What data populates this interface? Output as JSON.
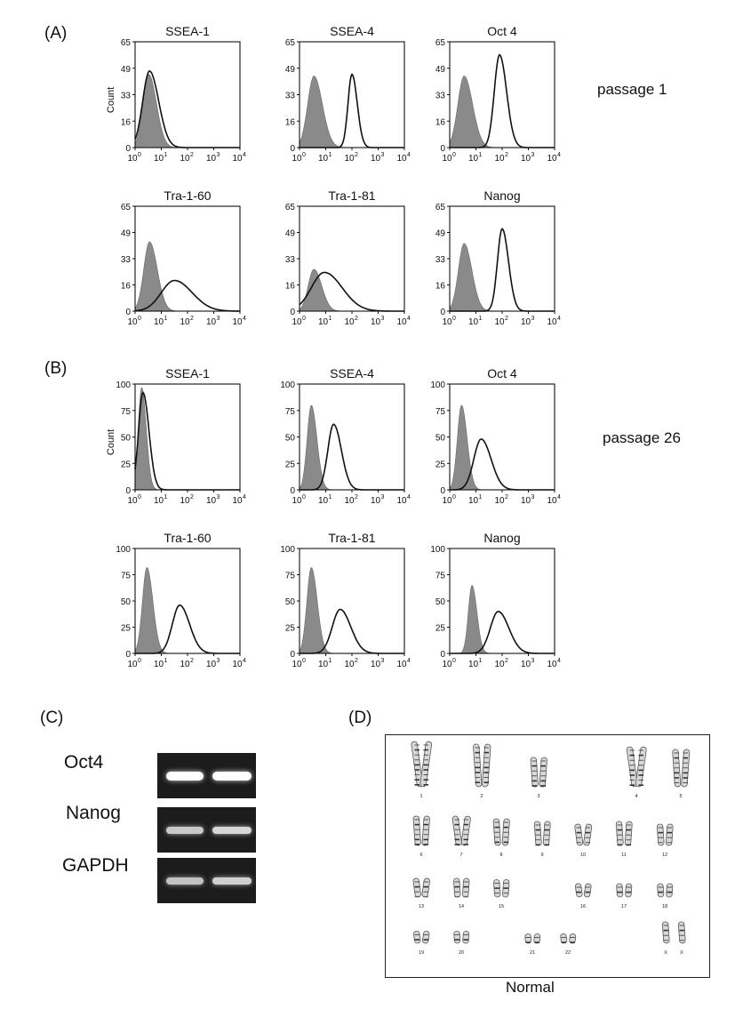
{
  "panels": {
    "A": "(A)",
    "B": "(B)",
    "C": "(C)",
    "D": "(D)"
  },
  "passages": {
    "A": "passage 1",
    "B": "passage 26"
  },
  "count_label": "Count",
  "chart_data": [
    {
      "type": "histogram",
      "panel": "A",
      "title": "SSEA-1",
      "ylabel": "Count",
      "yticks": [
        "0",
        "16",
        "33",
        "49",
        "65"
      ],
      "ylim": [
        0,
        65
      ],
      "xscale": "log",
      "xlim": [
        1,
        10000
      ],
      "isotype": {
        "peak_log": 0.52,
        "sigma": 0.22,
        "height": 45
      },
      "stain": {
        "peak_log": 0.55,
        "sigma": 0.26,
        "height": 47
      }
    },
    {
      "type": "histogram",
      "panel": "A",
      "title": "SSEA-4",
      "ylabel": "",
      "yticks": [
        "0",
        "16",
        "33",
        "49",
        "65"
      ],
      "ylim": [
        0,
        65
      ],
      "xscale": "log",
      "xlim": [
        1,
        10000
      ],
      "isotype": {
        "peak_log": 0.55,
        "sigma": 0.24,
        "height": 44
      },
      "stain": {
        "peak_log": 2.0,
        "sigma": 0.15,
        "height": 45
      }
    },
    {
      "type": "histogram",
      "panel": "A",
      "title": "Oct 4",
      "ylabel": "",
      "yticks": [
        "0",
        "16",
        "33",
        "49",
        "65"
      ],
      "ylim": [
        0,
        65
      ],
      "xscale": "log",
      "xlim": [
        1,
        10000
      ],
      "isotype": {
        "peak_log": 0.55,
        "sigma": 0.24,
        "height": 44
      },
      "stain": {
        "peak_log": 1.9,
        "sigma": 0.2,
        "height": 57
      }
    },
    {
      "type": "histogram",
      "panel": "A",
      "title": "Tra-1-60",
      "ylabel": "",
      "yticks": [
        "0",
        "16",
        "33",
        "49",
        "65"
      ],
      "ylim": [
        0,
        65
      ],
      "xscale": "log",
      "xlim": [
        1,
        10000
      ],
      "isotype": {
        "peak_log": 0.55,
        "sigma": 0.22,
        "height": 43
      },
      "stain": {
        "peak_log": 1.5,
        "sigma": 0.5,
        "height": 19
      }
    },
    {
      "type": "histogram",
      "panel": "A",
      "title": "Tra-1-81",
      "ylabel": "",
      "yticks": [
        "0",
        "16",
        "33",
        "49",
        "65"
      ],
      "ylim": [
        0,
        65
      ],
      "xscale": "log",
      "xlim": [
        1,
        10000
      ],
      "isotype": {
        "peak_log": 0.55,
        "sigma": 0.22,
        "height": 26
      },
      "stain": {
        "peak_log": 0.95,
        "sigma": 0.5,
        "height": 24
      }
    },
    {
      "type": "histogram",
      "panel": "A",
      "title": "Nanog",
      "ylabel": "",
      "yticks": [
        "0",
        "16",
        "33",
        "49",
        "65"
      ],
      "ylim": [
        0,
        65
      ],
      "xscale": "log",
      "xlim": [
        1,
        10000
      ],
      "isotype": {
        "peak_log": 0.55,
        "sigma": 0.22,
        "height": 42
      },
      "stain": {
        "peak_log": 2.0,
        "sigma": 0.18,
        "height": 51
      }
    },
    {
      "type": "histogram",
      "panel": "B",
      "title": "SSEA-1",
      "ylabel": "Count",
      "yticks": [
        "0",
        "25",
        "50",
        "75",
        "100"
      ],
      "ylim": [
        0,
        100
      ],
      "xscale": "log",
      "xlim": [
        1,
        10000
      ],
      "isotype": {
        "peak_log": 0.25,
        "sigma": 0.13,
        "height": 97
      },
      "stain": {
        "peak_log": 0.3,
        "sigma": 0.17,
        "height": 92
      }
    },
    {
      "type": "histogram",
      "panel": "B",
      "title": "SSEA-4",
      "ylabel": "",
      "yticks": [
        "0",
        "25",
        "50",
        "75",
        "100"
      ],
      "ylim": [
        0,
        100
      ],
      "xscale": "log",
      "xlim": [
        1,
        10000
      ],
      "isotype": {
        "peak_log": 0.45,
        "sigma": 0.16,
        "height": 80
      },
      "stain": {
        "peak_log": 1.3,
        "sigma": 0.22,
        "height": 62
      }
    },
    {
      "type": "histogram",
      "panel": "B",
      "title": "Oct 4",
      "ylabel": "",
      "yticks": [
        "0",
        "25",
        "50",
        "75",
        "100"
      ],
      "ylim": [
        0,
        100
      ],
      "xscale": "log",
      "xlim": [
        1,
        10000
      ],
      "isotype": {
        "peak_log": 0.45,
        "sigma": 0.16,
        "height": 80
      },
      "stain": {
        "peak_log": 1.2,
        "sigma": 0.28,
        "height": 48
      }
    },
    {
      "type": "histogram",
      "panel": "B",
      "title": "Tra-1-60",
      "ylabel": "",
      "yticks": [
        "0",
        "25",
        "50",
        "75",
        "100"
      ],
      "ylim": [
        0,
        100
      ],
      "xscale": "log",
      "xlim": [
        1,
        10000
      ],
      "isotype": {
        "peak_log": 0.45,
        "sigma": 0.17,
        "height": 82
      },
      "stain": {
        "peak_log": 1.7,
        "sigma": 0.28,
        "height": 46
      }
    },
    {
      "type": "histogram",
      "panel": "B",
      "title": "Tra-1-81",
      "ylabel": "",
      "yticks": [
        "0",
        "25",
        "50",
        "75",
        "100"
      ],
      "ylim": [
        0,
        100
      ],
      "xscale": "log",
      "xlim": [
        1,
        10000
      ],
      "isotype": {
        "peak_log": 0.45,
        "sigma": 0.17,
        "height": 82
      },
      "stain": {
        "peak_log": 1.55,
        "sigma": 0.3,
        "height": 42
      }
    },
    {
      "type": "histogram",
      "panel": "B",
      "title": "Nanog",
      "ylabel": "",
      "yticks": [
        "0",
        "25",
        "50",
        "75",
        "100"
      ],
      "ylim": [
        0,
        100
      ],
      "xscale": "log",
      "xlim": [
        1,
        10000
      ],
      "isotype": {
        "peak_log": 0.85,
        "sigma": 0.14,
        "height": 65
      },
      "stain": {
        "peak_log": 1.85,
        "sigma": 0.3,
        "height": 40
      }
    }
  ],
  "gel": {
    "genes": [
      "Oct4",
      "Nanog",
      "GAPDH"
    ],
    "band_intensity": [
      [
        1.0,
        1.0
      ],
      [
        0.6,
        0.7
      ],
      [
        0.55,
        0.65
      ]
    ]
  },
  "karyotype": {
    "chromosomes": [
      "1",
      "2",
      "3",
      "4",
      "5",
      "6",
      "7",
      "8",
      "9",
      "10",
      "11",
      "12",
      "13",
      "14",
      "15",
      "16",
      "17",
      "18",
      "19",
      "20",
      "21",
      "22",
      "X",
      "X"
    ],
    "caption": "Normal"
  }
}
